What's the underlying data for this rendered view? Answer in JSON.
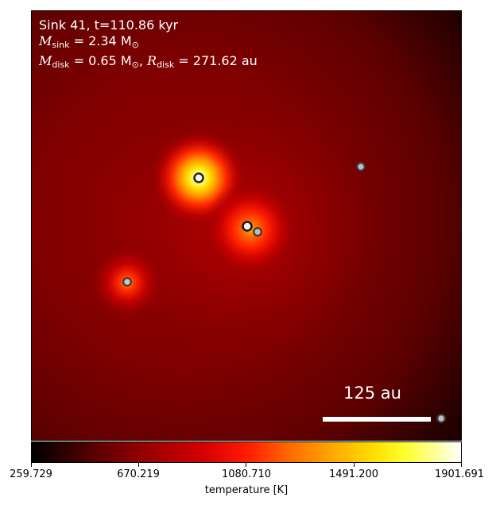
{
  "annotation": {
    "line1": "Sink 41, t=110.86 kyr",
    "msink_symbol": "M",
    "msink_sub": "sink",
    "msink_value": " = 2.34 M",
    "msink_unit_sub": "⊙",
    "mdisk_symbol": "M",
    "mdisk_sub": "disk",
    "mdisk_value": " = 0.65 M",
    "mdisk_unit_sub": "⊙",
    "rdisk_sep": ", ",
    "rdisk_symbol": "R",
    "rdisk_sub": "disk",
    "rdisk_value": " = 271.62 au"
  },
  "scale_bar": {
    "label": "125 au"
  },
  "colorbar": {
    "title": "temperature [K]",
    "ticks": [
      "259.729",
      "670.219",
      "1080.710",
      "1491.200",
      "1901.691"
    ],
    "colormap": "hot"
  },
  "sinks": [
    {
      "id": "sink-1",
      "fill": "#f2f2f2",
      "highlight": true
    },
    {
      "id": "sink-2",
      "fill": "#f2f2f2",
      "highlight": true
    },
    {
      "id": "sink-3",
      "fill": "#bdbdbd",
      "highlight": false
    },
    {
      "id": "sink-4",
      "fill": "#c8c8c8",
      "highlight": false
    },
    {
      "id": "sink-5",
      "fill": "#bdbdbd",
      "highlight": false
    },
    {
      "id": "sink-6",
      "fill": "#bdbdbd",
      "highlight": false
    }
  ]
}
